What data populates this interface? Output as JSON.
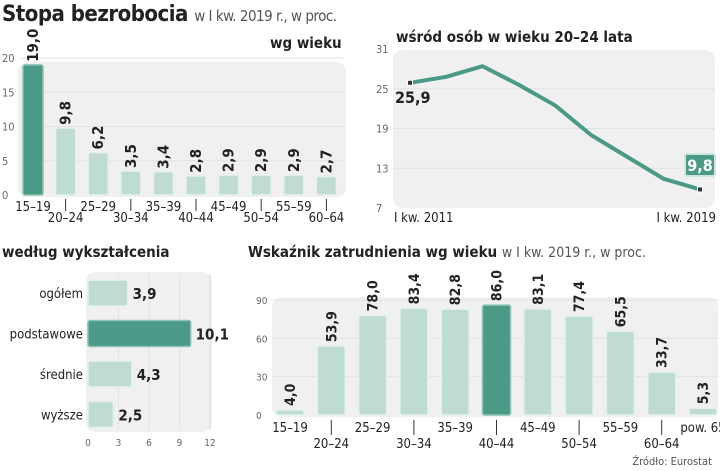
{
  "title": "Stopa bezrobocia",
  "title_sub": "w I kw. 2019 r., w proc.",
  "source": "Źródło: Eurostat",
  "chart_data": [
    {
      "type": "bar",
      "title": "wg wieku",
      "categories": [
        "15–19",
        "20–24",
        "25–29",
        "30–34",
        "35–39",
        "40–44",
        "45–49",
        "50–54",
        "55–59",
        "60–64"
      ],
      "values": [
        19.0,
        9.8,
        6.2,
        3.5,
        3.4,
        2.8,
        2.9,
        2.9,
        2.9,
        2.7
      ],
      "labels": [
        "19,0",
        "9,8",
        "6,2",
        "3,5",
        "3,4",
        "2,8",
        "2,9",
        "2,9",
        "2,9",
        "2,7"
      ],
      "highlight": 0,
      "ylim": [
        0,
        20
      ],
      "yticks": [
        0,
        5,
        10,
        15,
        20
      ],
      "grid": true
    },
    {
      "type": "line",
      "title": "wśród osób w wieku 20–24 lata",
      "x": [
        2011,
        2012,
        2013,
        2014,
        2015,
        2016,
        2017,
        2018,
        2019
      ],
      "values": [
        25.9,
        26.8,
        28.4,
        25.6,
        22.5,
        18.0,
        14.7,
        11.4,
        9.8
      ],
      "xticklabels": [
        "I kw. 2011",
        "I kw. 2019"
      ],
      "start_label": "25,9",
      "end_label": "9,8",
      "ylim": [
        7,
        31
      ],
      "yticks": [
        7,
        13,
        19,
        25,
        31
      ],
      "grid": true
    },
    {
      "type": "bar",
      "orientation": "horizontal",
      "title": "według wykształcenia",
      "categories": [
        "ogółem",
        "podstawowe",
        "średnie",
        "wyższe"
      ],
      "values": [
        3.9,
        10.1,
        4.3,
        2.5
      ],
      "labels": [
        "3,9",
        "10,1",
        "4,3",
        "2,5"
      ],
      "highlight": 1,
      "xlim": [
        0,
        12
      ],
      "xticks": [
        0,
        3,
        6,
        9,
        12
      ],
      "grid": true
    },
    {
      "type": "bar",
      "title": "Wskaźnik zatrudnienia wg wieku",
      "subtitle": "w I kw. 2019 r., w proc.",
      "categories": [
        "15–19",
        "20–24",
        "25–29",
        "30–34",
        "35–39",
        "40–44",
        "45–49",
        "50–54",
        "55–59",
        "60–64",
        "pow. 65"
      ],
      "values": [
        4.0,
        53.9,
        78.0,
        83.4,
        82.8,
        86.0,
        83.1,
        77.4,
        65.5,
        33.7,
        5.3
      ],
      "labels": [
        "4,0",
        "53,9",
        "78,0",
        "83,4",
        "82,8",
        "86,0",
        "83,1",
        "77,4",
        "65,5",
        "33,7",
        "5,3"
      ],
      "highlight": 5,
      "ylim": [
        0,
        90
      ],
      "yticks": [
        0,
        30,
        60,
        90
      ],
      "grid": true
    }
  ],
  "colors": {
    "dark": "#4a9a87",
    "light": "#bfdcd3",
    "panel": "#f0f0f0",
    "grid": "#e2e2e2"
  }
}
